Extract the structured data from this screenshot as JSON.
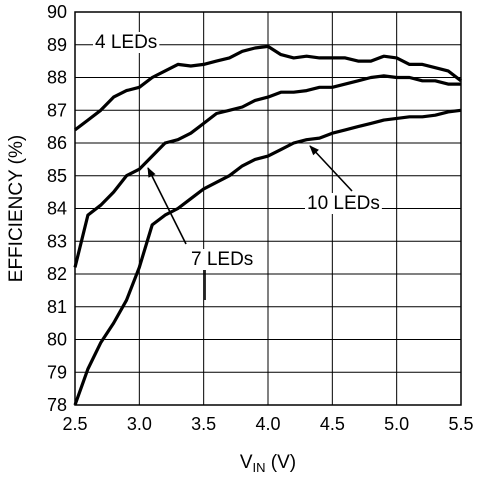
{
  "chart_data": {
    "type": "line",
    "xlabel": {
      "main": "V",
      "sub": "IN",
      "unit": " (V)"
    },
    "ylabel": "EFFICIENCY (%)",
    "xlim": [
      2.5,
      5.5
    ],
    "ylim": [
      78,
      90
    ],
    "x_ticks": [
      "2.5",
      "3.0",
      "3.5",
      "4.0",
      "4.5",
      "5.0",
      "5.5"
    ],
    "y_ticks": [
      "78",
      "79",
      "80",
      "81",
      "82",
      "83",
      "84",
      "85",
      "86",
      "87",
      "88",
      "89",
      "90"
    ],
    "grid": true,
    "series": [
      {
        "name": "4 LEDs",
        "x": [
          2.5,
          2.6,
          2.7,
          2.8,
          2.9,
          3.0,
          3.1,
          3.2,
          3.3,
          3.4,
          3.5,
          3.6,
          3.7,
          3.8,
          3.9,
          4.0,
          4.1,
          4.2,
          4.3,
          4.4,
          4.5,
          4.6,
          4.7,
          4.8,
          4.9,
          5.0,
          5.1,
          5.2,
          5.3,
          5.4,
          5.5
        ],
        "values": [
          86.4,
          86.7,
          87.0,
          87.4,
          87.6,
          87.7,
          88.0,
          88.2,
          88.4,
          88.35,
          88.4,
          88.5,
          88.6,
          88.8,
          88.9,
          88.95,
          88.7,
          88.6,
          88.65,
          88.6,
          88.6,
          88.6,
          88.5,
          88.5,
          88.65,
          88.6,
          88.4,
          88.4,
          88.3,
          88.2,
          87.9
        ]
      },
      {
        "name": "7 LEDs",
        "x": [
          2.5,
          2.6,
          2.7,
          2.8,
          2.9,
          3.0,
          3.1,
          3.2,
          3.3,
          3.4,
          3.5,
          3.6,
          3.7,
          3.8,
          3.9,
          4.0,
          4.1,
          4.2,
          4.3,
          4.4,
          4.5,
          4.6,
          4.7,
          4.8,
          4.9,
          5.0,
          5.1,
          5.2,
          5.3,
          5.4,
          5.5
        ],
        "values": [
          82.2,
          83.8,
          84.1,
          84.5,
          85.0,
          85.2,
          85.6,
          86.0,
          86.1,
          86.3,
          86.6,
          86.9,
          87.0,
          87.1,
          87.3,
          87.4,
          87.55,
          87.55,
          87.6,
          87.7,
          87.7,
          87.8,
          87.9,
          88.0,
          88.05,
          88.0,
          88.0,
          87.9,
          87.9,
          87.8,
          87.8
        ]
      },
      {
        "name": "10 LEDs",
        "x": [
          2.5,
          2.6,
          2.7,
          2.8,
          2.9,
          3.0,
          3.1,
          3.2,
          3.3,
          3.4,
          3.5,
          3.6,
          3.7,
          3.8,
          3.9,
          4.0,
          4.1,
          4.2,
          4.3,
          4.4,
          4.5,
          4.6,
          4.7,
          4.8,
          4.9,
          5.0,
          5.1,
          5.2,
          5.3,
          5.4,
          5.5
        ],
        "values": [
          78.0,
          79.1,
          79.9,
          80.5,
          81.2,
          82.2,
          83.5,
          83.8,
          84.0,
          84.3,
          84.6,
          84.8,
          85.0,
          85.3,
          85.5,
          85.6,
          85.8,
          86.0,
          86.1,
          86.15,
          86.3,
          86.4,
          86.5,
          86.6,
          86.7,
          86.75,
          86.8,
          86.8,
          86.85,
          86.95,
          87.0
        ]
      }
    ],
    "labels": [
      {
        "text": "4 LEDs"
      },
      {
        "text": "7 LEDs"
      },
      {
        "text": "10 LEDs"
      }
    ]
  }
}
